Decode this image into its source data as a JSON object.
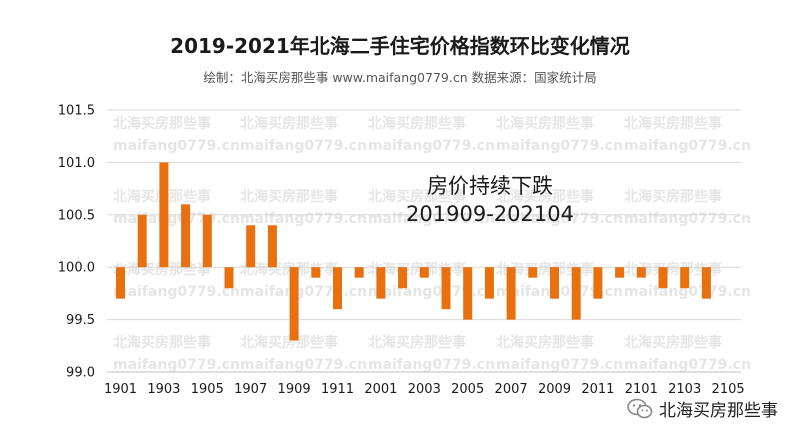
{
  "title": "2019-2021年北海二手住宅价格指数环比变化情况",
  "subtitle": "绘制：北海买房那些事 www.maifang0779.cn  数据来源：国家统计局",
  "annotation": {
    "line1": "房价持续下跌",
    "line2": "201909-202104"
  },
  "watermark": {
    "line1": "北海买房那些事",
    "line2": "maifang0779.cn"
  },
  "footer_brand": "北海买房那些事",
  "colors": {
    "bar": "#E8700F",
    "grid": "#d9d9d9",
    "axis": "#bfbfbf",
    "text": "#1a1a1a"
  },
  "chart_data": {
    "type": "bar",
    "categories": [
      "1901",
      "1902",
      "1903",
      "1904",
      "1905",
      "1906",
      "1907",
      "1908",
      "1909",
      "1910",
      "1911",
      "1912",
      "2001",
      "2002",
      "2003",
      "2004",
      "2005",
      "2006",
      "2007",
      "2008",
      "2009",
      "2010",
      "2011",
      "2012",
      "2101",
      "2102",
      "2103",
      "2104"
    ],
    "tick_labels": [
      "1901",
      "1903",
      "1905",
      "1907",
      "1909",
      "1911",
      "2001",
      "2003",
      "2005",
      "2007",
      "2009",
      "2011",
      "2101",
      "2103",
      "2105"
    ],
    "values": [
      99.7,
      100.5,
      101.0,
      100.6,
      100.5,
      99.8,
      100.4,
      100.4,
      99.3,
      99.9,
      99.6,
      99.9,
      99.7,
      99.8,
      99.9,
      99.6,
      99.5,
      99.7,
      99.5,
      99.9,
      99.7,
      99.5,
      99.7,
      99.9,
      99.9,
      99.8,
      99.8,
      99.7
    ],
    "baseline": 100.0,
    "ylim": [
      99.0,
      101.5
    ],
    "yticks": [
      99.0,
      99.5,
      100.0,
      100.5,
      101.0,
      101.5
    ],
    "grid": true,
    "legend": "none"
  }
}
